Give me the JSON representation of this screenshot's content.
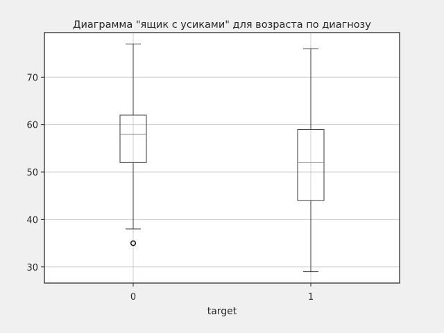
{
  "figure": {
    "background": "#f0f0f0"
  },
  "chart_data": {
    "type": "box",
    "title": "Диаграмма \"ящик с усиками\" для возраста по диагнозу",
    "xlabel": "target",
    "ylabel": "",
    "ylim": [
      26.6,
      79.4
    ],
    "yticks": [
      30,
      40,
      50,
      60,
      70
    ],
    "grid": true,
    "categories": [
      "0",
      "1"
    ],
    "boxes": [
      {
        "category": "0",
        "whisker_low": 38,
        "q1": 52,
        "median": 58,
        "q3": 62,
        "whisker_high": 77,
        "outliers": [
          35
        ]
      },
      {
        "category": "1",
        "whisker_low": 29,
        "q1": 44,
        "median": 52,
        "q3": 59,
        "whisker_high": 76,
        "outliers": []
      }
    ],
    "colors": {
      "box": "#3a3a3a",
      "median": "#9a9a9a",
      "grid": "#cccccc",
      "axes_face": "#ffffff",
      "spine": "#262626"
    }
  }
}
